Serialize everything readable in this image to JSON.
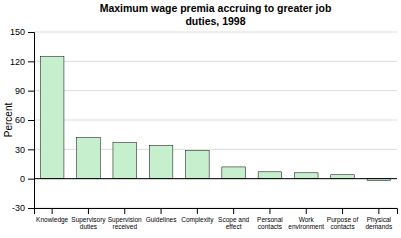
{
  "chart_data": {
    "type": "bar",
    "title": "Maximum wage premia accruing to greater job\nduties, 1998",
    "categories": [
      "Knowledge",
      "Supervisory\nduties",
      "Supervision\nreceived",
      "Guidelines",
      "Complexity",
      "Scope and\neffect",
      "Personal\ncontacts",
      "Work\nenvironment",
      "Purpose of\ncontacts",
      "Physical\ndemands"
    ],
    "values": [
      125,
      42,
      37,
      34,
      29,
      12,
      7,
      6,
      4,
      -2
    ],
    "color": "#c6efce",
    "ylabel": "Percent",
    "ylim": [
      -30,
      150
    ],
    "yticks": [
      -30,
      0,
      30,
      60,
      90,
      120,
      150
    ],
    "grid": true
  }
}
